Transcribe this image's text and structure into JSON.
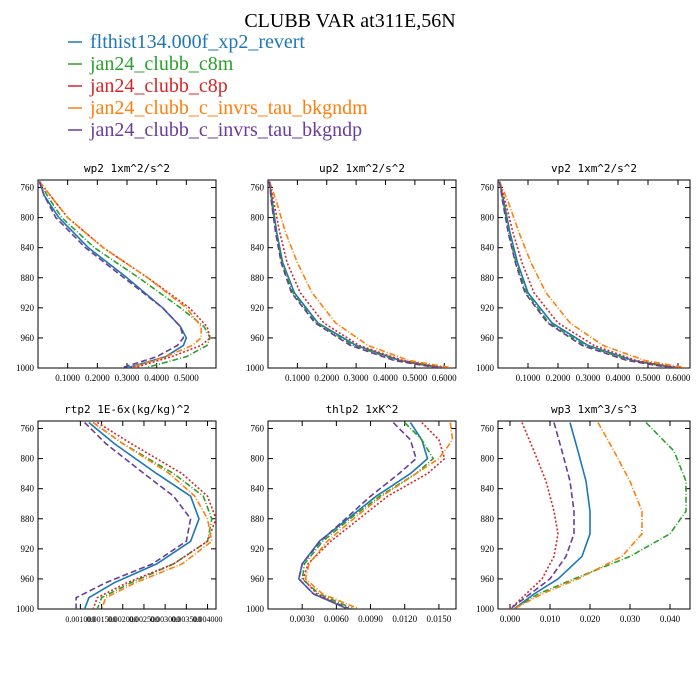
{
  "title": "CLUBB VAR at311E,56N",
  "legend": [
    {
      "label": "flthist134.000f_xp2_revert",
      "color": "#1f77b4",
      "dash": "solid"
    },
    {
      "label": "jan24_clubb_c8m",
      "color": "#2ca02c",
      "dash": "dashdot"
    },
    {
      "label": "jan24_clubb_c8p",
      "color": "#d62728",
      "dash": "dot"
    },
    {
      "label": "jan24_clubb_c_invrs_tau_bkgndm",
      "color": "#ff7f0e",
      "dash": "dashdot"
    },
    {
      "label": "jan24_clubb_c_invrs_tau_bkgndp",
      "color": "#6a3d9a",
      "dash": "dash"
    }
  ],
  "chart_data": [
    {
      "type": "line",
      "title": "wp2  1xm^2/s^2",
      "ylim": [
        1000,
        750
      ],
      "y_ticks": [
        "760",
        "800",
        "840",
        "880",
        "920",
        "960",
        "1000"
      ],
      "xlim": [
        0,
        0.6
      ],
      "x_ticks": [
        "0.1000",
        "0.2000",
        "0.3000",
        "0.4000",
        "0.5000"
      ],
      "x_tick_values": [
        0.1,
        0.2,
        0.3,
        0.4,
        0.5
      ],
      "y_tick_values": [
        760,
        800,
        840,
        880,
        920,
        960,
        1000
      ],
      "series": [
        {
          "name": "flthist134.000f_xp2_revert",
          "y": [
            752,
            770,
            800,
            840,
            880,
            920,
            945,
            960,
            970,
            985,
            1000
          ],
          "x": [
            0.005,
            0.02,
            0.07,
            0.17,
            0.3,
            0.42,
            0.48,
            0.5,
            0.49,
            0.43,
            0.3
          ]
        },
        {
          "name": "jan24_clubb_c8m",
          "y": [
            752,
            770,
            800,
            840,
            880,
            920,
            945,
            960,
            970,
            985,
            1000
          ],
          "x": [
            0.005,
            0.03,
            0.08,
            0.19,
            0.34,
            0.48,
            0.56,
            0.58,
            0.57,
            0.5,
            0.36
          ]
        },
        {
          "name": "jan24_clubb_c8p",
          "y": [
            752,
            770,
            800,
            840,
            880,
            920,
            945,
            960,
            970,
            985,
            1000
          ],
          "x": [
            0.005,
            0.04,
            0.1,
            0.22,
            0.37,
            0.51,
            0.57,
            0.58,
            0.55,
            0.45,
            0.32
          ]
        },
        {
          "name": "jan24_clubb_c_invrs_tau_bkgndm",
          "y": [
            752,
            770,
            800,
            840,
            880,
            920,
            945,
            960,
            970,
            985,
            1000
          ],
          "x": [
            0.005,
            0.04,
            0.1,
            0.22,
            0.37,
            0.5,
            0.55,
            0.55,
            0.52,
            0.43,
            0.31
          ]
        },
        {
          "name": "jan24_clubb_c_invrs_tau_bkgndp",
          "y": [
            752,
            770,
            800,
            840,
            880,
            920,
            945,
            960,
            970,
            985,
            1000
          ],
          "x": [
            0.005,
            0.02,
            0.06,
            0.16,
            0.29,
            0.42,
            0.48,
            0.49,
            0.47,
            0.4,
            0.28
          ]
        }
      ]
    },
    {
      "type": "line",
      "title": "up2  1xm^2/s^2",
      "ylim": [
        1000,
        750
      ],
      "y_ticks": [
        "760",
        "800",
        "840",
        "880",
        "920",
        "960",
        "1000"
      ],
      "xlim": [
        0,
        0.64
      ],
      "x_ticks": [
        "0.1000",
        "0.2000",
        "0.3000",
        "0.4000",
        "0.5000",
        "0.6000"
      ],
      "x_tick_values": [
        0.1,
        0.2,
        0.3,
        0.4,
        0.5,
        0.6
      ],
      "y_tick_values": [
        760,
        800,
        840,
        880,
        920,
        960,
        1000
      ],
      "series": [
        {
          "name": "flthist134.000f_xp2_revert",
          "y": [
            752,
            780,
            820,
            860,
            900,
            940,
            970,
            990,
            1000
          ],
          "x": [
            0.005,
            0.015,
            0.03,
            0.05,
            0.09,
            0.17,
            0.3,
            0.45,
            0.6
          ]
        },
        {
          "name": "jan24_clubb_c8m",
          "y": [
            752,
            780,
            820,
            860,
            900,
            940,
            970,
            990,
            1000
          ],
          "x": [
            0.005,
            0.013,
            0.028,
            0.048,
            0.085,
            0.165,
            0.29,
            0.44,
            0.59
          ]
        },
        {
          "name": "jan24_clubb_c8p",
          "y": [
            752,
            780,
            820,
            860,
            900,
            940,
            970,
            990,
            1000
          ],
          "x": [
            0.005,
            0.02,
            0.04,
            0.065,
            0.11,
            0.19,
            0.31,
            0.46,
            0.61
          ]
        },
        {
          "name": "jan24_clubb_c_invrs_tau_bkgndm",
          "y": [
            752,
            780,
            820,
            860,
            900,
            940,
            970,
            990,
            1000
          ],
          "x": [
            0.005,
            0.03,
            0.06,
            0.1,
            0.15,
            0.23,
            0.34,
            0.48,
            0.63
          ]
        },
        {
          "name": "jan24_clubb_c_invrs_tau_bkgndp",
          "y": [
            752,
            780,
            820,
            860,
            900,
            940,
            970,
            990,
            1000
          ],
          "x": [
            0.005,
            0.012,
            0.026,
            0.045,
            0.08,
            0.16,
            0.28,
            0.43,
            0.58
          ]
        }
      ]
    },
    {
      "type": "line",
      "title": "vp2  1xm^2/s^2",
      "ylim": [
        1000,
        750
      ],
      "y_ticks": [
        "760",
        "800",
        "840",
        "880",
        "920",
        "960",
        "1000"
      ],
      "xlim": [
        0,
        0.64
      ],
      "x_ticks": [
        "0.1000",
        "0.2000",
        "0.3000",
        "0.4000",
        "0.5000",
        "0.6000"
      ],
      "x_tick_values": [
        0.1,
        0.2,
        0.3,
        0.4,
        0.5,
        0.6
      ],
      "y_tick_values": [
        760,
        800,
        840,
        880,
        920,
        960,
        1000
      ],
      "series": [
        {
          "name": "flthist134.000f_xp2_revert",
          "y": [
            752,
            780,
            820,
            860,
            900,
            940,
            970,
            990,
            1000
          ],
          "x": [
            0.005,
            0.02,
            0.04,
            0.065,
            0.1,
            0.18,
            0.3,
            0.45,
            0.6
          ]
        },
        {
          "name": "jan24_clubb_c8m",
          "y": [
            752,
            780,
            820,
            860,
            900,
            940,
            970,
            990,
            1000
          ],
          "x": [
            0.005,
            0.018,
            0.036,
            0.06,
            0.095,
            0.17,
            0.29,
            0.44,
            0.59
          ]
        },
        {
          "name": "jan24_clubb_c8p",
          "y": [
            752,
            780,
            820,
            860,
            900,
            940,
            970,
            990,
            1000
          ],
          "x": [
            0.005,
            0.025,
            0.05,
            0.08,
            0.12,
            0.2,
            0.32,
            0.46,
            0.61
          ]
        },
        {
          "name": "jan24_clubb_c_invrs_tau_bkgndm",
          "y": [
            752,
            780,
            820,
            860,
            900,
            940,
            970,
            990,
            1000
          ],
          "x": [
            0.005,
            0.035,
            0.07,
            0.11,
            0.16,
            0.24,
            0.35,
            0.49,
            0.63
          ]
        },
        {
          "name": "jan24_clubb_c_invrs_tau_bkgndp",
          "y": [
            752,
            780,
            820,
            860,
            900,
            940,
            970,
            990,
            1000
          ],
          "x": [
            0.005,
            0.016,
            0.034,
            0.058,
            0.09,
            0.165,
            0.28,
            0.43,
            0.58
          ]
        }
      ]
    },
    {
      "type": "line",
      "title": "rtp2  1E-6x(kg/kg)^2",
      "ylim": [
        1000,
        750
      ],
      "y_ticks": [
        "760",
        "800",
        "840",
        "880",
        "920",
        "960",
        "1000"
      ],
      "xlim": [
        0,
        0.0042
      ],
      "x_ticks": [
        "0.001000",
        "0.001500",
        "0.002000",
        "0.002500",
        "0.003000",
        "0.003500",
        "0.004000"
      ],
      "x_tick_values": [
        0.001,
        0.0015,
        0.002,
        0.0025,
        0.003,
        0.0035,
        0.004
      ],
      "y_tick_values": [
        760,
        800,
        840,
        880,
        920,
        960,
        1000
      ],
      "series": [
        {
          "name": "flthist134.000f_xp2_revert",
          "y": [
            752,
            780,
            820,
            850,
            880,
            910,
            940,
            965,
            985,
            1000
          ],
          "x": [
            0.0012,
            0.0018,
            0.0028,
            0.0036,
            0.0038,
            0.0036,
            0.0028,
            0.0018,
            0.0012,
            0.0011
          ]
        },
        {
          "name": "jan24_clubb_c8m",
          "y": [
            752,
            780,
            820,
            850,
            880,
            910,
            940,
            965,
            985,
            1000
          ],
          "x": [
            0.0013,
            0.002,
            0.0032,
            0.0039,
            0.0041,
            0.004,
            0.0032,
            0.0022,
            0.0015,
            0.0014
          ]
        },
        {
          "name": "jan24_clubb_c8p",
          "y": [
            752,
            780,
            820,
            850,
            880,
            910,
            940,
            965,
            985,
            1000
          ],
          "x": [
            0.0014,
            0.0022,
            0.0034,
            0.004,
            0.0042,
            0.004,
            0.0032,
            0.0021,
            0.0014,
            0.0013
          ]
        },
        {
          "name": "jan24_clubb_c_invrs_tau_bkgndm",
          "y": [
            752,
            780,
            820,
            850,
            880,
            910,
            940,
            965,
            985,
            1000
          ],
          "x": [
            0.0013,
            0.002,
            0.0031,
            0.0037,
            0.004,
            0.0041,
            0.0034,
            0.0023,
            0.0016,
            0.0015
          ]
        },
        {
          "name": "jan24_clubb_c_invrs_tau_bkgndp",
          "y": [
            752,
            780,
            820,
            850,
            880,
            910,
            940,
            965,
            985,
            1000
          ],
          "x": [
            0.0011,
            0.0016,
            0.0025,
            0.0032,
            0.0036,
            0.0035,
            0.0027,
            0.0016,
            0.0009,
            0.0009
          ]
        }
      ]
    },
    {
      "type": "line",
      "title": "thlp2  1xK^2",
      "ylim": [
        1000,
        750
      ],
      "y_ticks": [
        "760",
        "800",
        "840",
        "880",
        "920",
        "960",
        "1000"
      ],
      "xlim": [
        0,
        0.0165
      ],
      "x_ticks": [
        "0.0030",
        "0.0060",
        "0.0090",
        "0.0120",
        "0.0150"
      ],
      "x_tick_values": [
        0.003,
        0.006,
        0.009,
        0.012,
        0.015
      ],
      "y_tick_values": [
        760,
        800,
        840,
        880,
        920,
        960,
        1000
      ],
      "series": [
        {
          "name": "flthist134.000f_xp2_revert",
          "y": [
            752,
            775,
            800,
            820,
            850,
            880,
            910,
            940,
            960,
            980,
            1000
          ],
          "x": [
            0.0125,
            0.0135,
            0.014,
            0.0125,
            0.0095,
            0.007,
            0.0045,
            0.003,
            0.0027,
            0.004,
            0.007
          ]
        },
        {
          "name": "jan24_clubb_c8m",
          "y": [
            752,
            775,
            800,
            820,
            850,
            880,
            910,
            940,
            960,
            980,
            1000
          ],
          "x": [
            0.012,
            0.0135,
            0.0145,
            0.013,
            0.0098,
            0.0072,
            0.0048,
            0.0032,
            0.003,
            0.0045,
            0.0075
          ]
        },
        {
          "name": "jan24_clubb_c8p",
          "y": [
            752,
            775,
            800,
            820,
            850,
            880,
            910,
            940,
            960,
            980,
            1000
          ],
          "x": [
            0.0135,
            0.015,
            0.0155,
            0.014,
            0.0105,
            0.008,
            0.0055,
            0.0035,
            0.0031,
            0.0043,
            0.007
          ]
        },
        {
          "name": "jan24_clubb_c_invrs_tau_bkgndm",
          "y": [
            752,
            775,
            800,
            820,
            850,
            880,
            910,
            940,
            960,
            980,
            1000
          ],
          "x": [
            0.016,
            0.0162,
            0.015,
            0.013,
            0.01,
            0.0075,
            0.0052,
            0.0036,
            0.0033,
            0.0048,
            0.008
          ]
        },
        {
          "name": "jan24_clubb_c_invrs_tau_bkgndp",
          "y": [
            752,
            775,
            800,
            820,
            850,
            880,
            910,
            940,
            960,
            980,
            1000
          ],
          "x": [
            0.011,
            0.0125,
            0.013,
            0.0115,
            0.009,
            0.0068,
            0.0046,
            0.003,
            0.0027,
            0.004,
            0.0072
          ]
        }
      ]
    },
    {
      "type": "line",
      "title": "wp3  1xm^3/s^3",
      "ylim": [
        1000,
        750
      ],
      "y_ticks": [
        "760",
        "800",
        "840",
        "880",
        "920",
        "960",
        "1000"
      ],
      "xlim": [
        -0.003,
        0.045
      ],
      "x_ticks": [
        "0.000",
        "0.010",
        "0.020",
        "0.030",
        "0.040"
      ],
      "x_tick_values": [
        0.0,
        0.01,
        0.02,
        0.03,
        0.04
      ],
      "y_tick_values": [
        760,
        800,
        840,
        880,
        920,
        960,
        1000
      ],
      "series": [
        {
          "name": "flthist134.000f_xp2_revert",
          "y": [
            752,
            790,
            830,
            870,
            900,
            930,
            960,
            980,
            1000
          ],
          "x": [
            0.015,
            0.017,
            0.019,
            0.02,
            0.02,
            0.018,
            0.012,
            0.006,
            0.001
          ]
        },
        {
          "name": "jan24_clubb_c8m",
          "y": [
            752,
            790,
            830,
            870,
            900,
            930,
            960,
            980,
            1000
          ],
          "x": [
            0.034,
            0.041,
            0.044,
            0.044,
            0.04,
            0.03,
            0.016,
            0.007,
            0.001
          ]
        },
        {
          "name": "jan24_clubb_c8p",
          "y": [
            752,
            790,
            830,
            870,
            900,
            930,
            960,
            980,
            1000
          ],
          "x": [
            0.003,
            0.006,
            0.009,
            0.011,
            0.012,
            0.011,
            0.008,
            0.004,
            0.0
          ]
        },
        {
          "name": "jan24_clubb_c_invrs_tau_bkgndm",
          "y": [
            752,
            790,
            830,
            870,
            900,
            930,
            960,
            980,
            1000
          ],
          "x": [
            0.022,
            0.026,
            0.03,
            0.033,
            0.033,
            0.028,
            0.017,
            0.008,
            0.001
          ]
        },
        {
          "name": "jan24_clubb_c_invrs_tau_bkgndp",
          "y": [
            752,
            790,
            830,
            870,
            900,
            930,
            960,
            980,
            1000
          ],
          "x": [
            0.011,
            0.013,
            0.015,
            0.016,
            0.016,
            0.014,
            0.01,
            0.005,
            0.0
          ]
        }
      ]
    }
  ]
}
